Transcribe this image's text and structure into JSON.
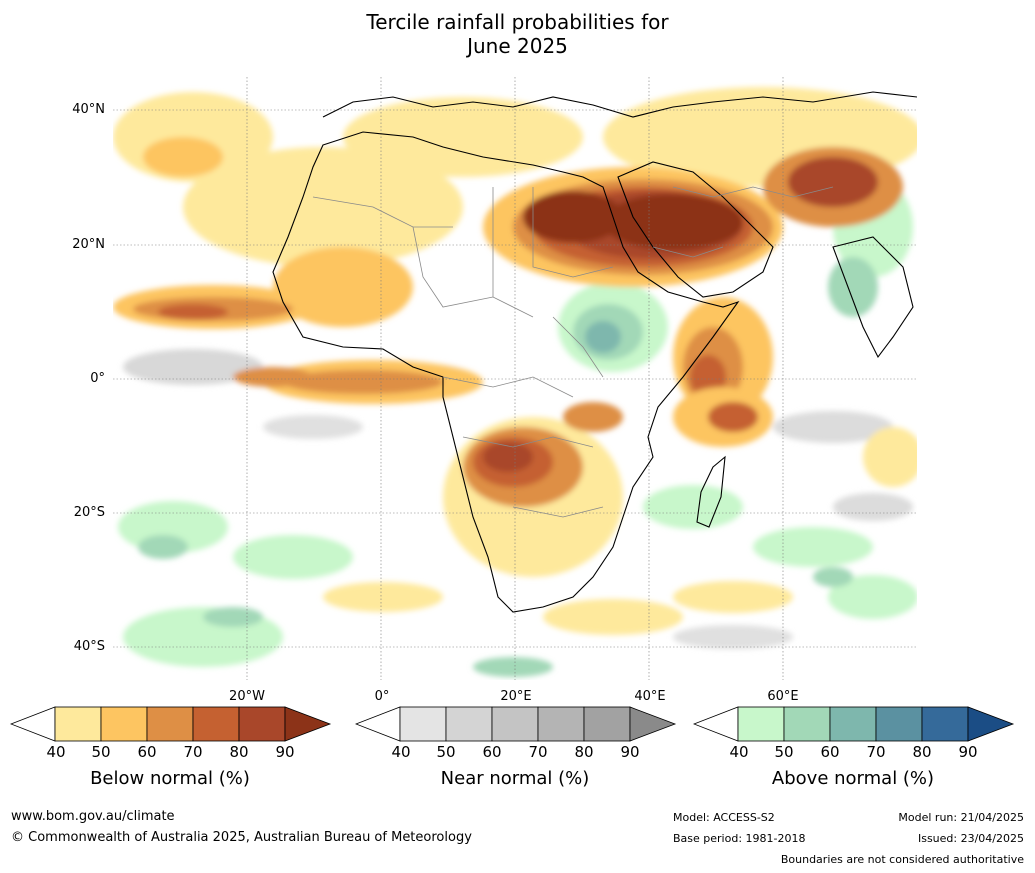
{
  "title": {
    "line1": "Tercile rainfall probabilities for",
    "line2": "June 2025"
  },
  "map": {
    "region": "Africa, Middle East and surrounding oceans",
    "lat_labels": [
      "40°N",
      "20°N",
      "0°",
      "20°S",
      "40°S"
    ],
    "lon_labels": [
      "20°W",
      "0°",
      "20°E",
      "40°E",
      "60°E"
    ],
    "gridlines": true
  },
  "colorbars": [
    {
      "name": "Below normal (%)",
      "ticks": [
        "40",
        "50",
        "60",
        "70",
        "80",
        "90"
      ],
      "colors": [
        "#ffffff",
        "#fee99c",
        "#fdc561",
        "#de8f45",
        "#c56131",
        "#a9472a",
        "#8c3318"
      ]
    },
    {
      "name": "Near normal (%)",
      "ticks": [
        "40",
        "50",
        "60",
        "70",
        "80",
        "90"
      ],
      "colors": [
        "#ffffff",
        "#e4e4e4",
        "#d4d4d4",
        "#c4c4c4",
        "#b4b4b4",
        "#a2a2a2",
        "#8a8a8a"
      ]
    },
    {
      "name": "Above normal (%)",
      "ticks": [
        "40",
        "50",
        "60",
        "70",
        "80",
        "90"
      ],
      "colors": [
        "#ffffff",
        "#c8f7cb",
        "#a2d8b7",
        "#7eb7ad",
        "#5b91a1",
        "#356a9a",
        "#1b4d85"
      ]
    }
  ],
  "footer": {
    "website": "www.bom.gov.au/climate",
    "copyright": "© Commonwealth of Australia 2025, Australian Bureau of Meteorology",
    "model": "Model: ACCESS-S2",
    "base_period": "Base period: 1981-2018",
    "model_run": "Model run: 21/04/2025",
    "issued": "Issued: 23/04/2025",
    "disclaimer": "Boundaries are not considered authoritative"
  }
}
